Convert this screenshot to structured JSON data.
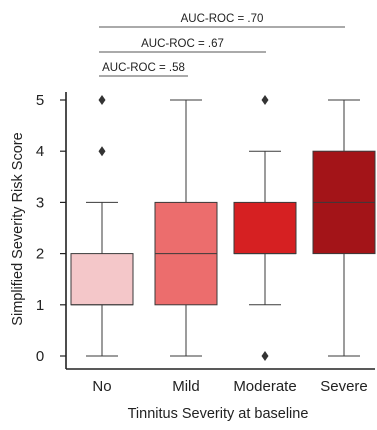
{
  "chart_data": {
    "type": "box",
    "title": "",
    "xlabel": "Tinnitus Severity at baseline",
    "ylabel": "Simplified  Severity Risk Score",
    "ylim": [
      0,
      5
    ],
    "yticks": [
      "0",
      "1",
      "2",
      "3",
      "4",
      "5"
    ],
    "categories": [
      "No",
      "Mild",
      "Moderate",
      "Severe"
    ],
    "colors": [
      "#f4c7c9",
      "#ec6d6d",
      "#d62022",
      "#a31418"
    ],
    "boxes": [
      {
        "whisker_low": 0,
        "q1": 1,
        "median": 1,
        "q3": 2,
        "whisker_high": 3,
        "outliers": [
          4,
          5
        ]
      },
      {
        "whisker_low": 0,
        "q1": 1,
        "median": 2,
        "q3": 3,
        "whisker_high": 5,
        "outliers": []
      },
      {
        "whisker_low": 1,
        "q1": 2,
        "median": 2,
        "q3": 3,
        "whisker_high": 4,
        "outliers": [
          0,
          5
        ]
      },
      {
        "whisker_low": 0,
        "q1": 2,
        "median": 3,
        "q3": 4,
        "whisker_high": 5,
        "outliers": []
      }
    ],
    "comparisons": [
      {
        "label": "AUC-ROC = .58",
        "from": 0,
        "to": 1
      },
      {
        "label": "AUC-ROC = .67",
        "from": 0,
        "to": 2
      },
      {
        "label": "AUC-ROC = .70",
        "from": 0,
        "to": 3
      }
    ]
  }
}
